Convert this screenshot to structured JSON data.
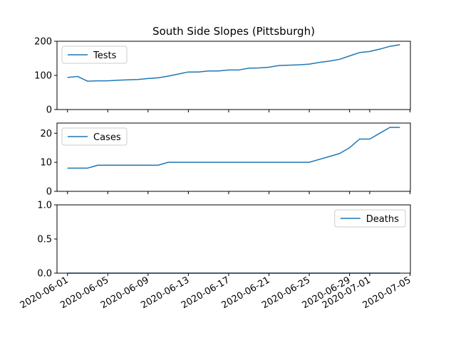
{
  "chart_data": {
    "type": "line",
    "title": "South Side Slopes (Pittsburgh)",
    "x": [
      "2020-06-01",
      "2020-06-02",
      "2020-06-03",
      "2020-06-04",
      "2020-06-05",
      "2020-06-06",
      "2020-06-07",
      "2020-06-08",
      "2020-06-09",
      "2020-06-10",
      "2020-06-11",
      "2020-06-12",
      "2020-06-13",
      "2020-06-14",
      "2020-06-15",
      "2020-06-16",
      "2020-06-17",
      "2020-06-18",
      "2020-06-19",
      "2020-06-20",
      "2020-06-21",
      "2020-06-22",
      "2020-06-23",
      "2020-06-24",
      "2020-06-25",
      "2020-06-26",
      "2020-06-27",
      "2020-06-28",
      "2020-06-29",
      "2020-06-30",
      "2020-07-01",
      "2020-07-02",
      "2020-07-03",
      "2020-07-04"
    ],
    "x_ticks": [
      "2020-06-01",
      "2020-06-05",
      "2020-06-09",
      "2020-06-13",
      "2020-06-17",
      "2020-06-21",
      "2020-06-25",
      "2020-06-29",
      "2020-07-01",
      "2020-07-05"
    ],
    "panels": [
      {
        "series_name": "Tests",
        "legend": "top-left",
        "ylim": [
          0,
          200
        ],
        "y_ticks": [
          "0",
          "100",
          "200"
        ],
        "y_tick_values": [
          0,
          100,
          200
        ],
        "values": [
          94,
          97,
          83,
          84,
          84,
          86,
          87,
          88,
          91,
          93,
          98,
          104,
          110,
          110,
          113,
          113,
          116,
          116,
          121,
          122,
          124,
          129,
          130,
          131,
          133,
          138,
          142,
          147,
          157,
          167,
          170,
          177,
          185,
          190
        ]
      },
      {
        "series_name": "Cases",
        "legend": "top-left",
        "ylim": [
          0,
          23.5
        ],
        "y_ticks": [
          "0",
          "10",
          "20"
        ],
        "y_tick_values": [
          0,
          10,
          20
        ],
        "values": [
          8,
          8,
          8,
          9,
          9,
          9,
          9,
          9,
          9,
          9,
          10,
          10,
          10,
          10,
          10,
          10,
          10,
          10,
          10,
          10,
          10,
          10,
          10,
          10,
          10,
          11,
          12,
          13,
          15,
          18,
          18,
          20,
          22,
          22
        ]
      },
      {
        "series_name": "Deaths",
        "legend": "top-right",
        "ylim": [
          0,
          1
        ],
        "y_ticks": [
          "0.0",
          "0.5",
          "1.0"
        ],
        "y_tick_values": [
          0,
          0.5,
          1
        ],
        "values": [
          0,
          0,
          0,
          0,
          0,
          0,
          0,
          0,
          0,
          0,
          0,
          0,
          0,
          0,
          0,
          0,
          0,
          0,
          0,
          0,
          0,
          0,
          0,
          0,
          0,
          0,
          0,
          0,
          0,
          0,
          0,
          0,
          0,
          0
        ]
      }
    ]
  }
}
